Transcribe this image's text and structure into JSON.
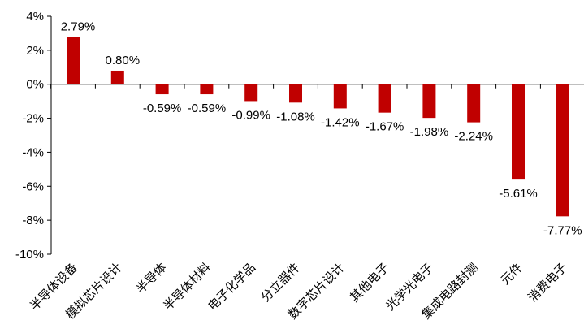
{
  "chart_data": {
    "type": "bar",
    "title": "",
    "xlabel": "",
    "ylabel": "",
    "categories": [
      "半导体设备",
      "模拟芯片设计",
      "半导体",
      "半导体材料",
      "电子化学品",
      "分立器件",
      "数字芯片设计",
      "其他电子",
      "光学光电子",
      "集成电路封测",
      "元件",
      "消费电子"
    ],
    "values": [
      2.79,
      0.8,
      -0.59,
      -0.59,
      -0.99,
      -1.08,
      -1.42,
      -1.67,
      -1.98,
      -2.24,
      -5.61,
      -7.77
    ],
    "data_labels": [
      "2.79%",
      "0.80%",
      "-0.59%",
      "-0.59%",
      "-0.99%",
      "-1.08%",
      "-1.42%",
      "-1.67%",
      "-1.98%",
      "-2.24%",
      "-5.61%",
      "-7.77%"
    ],
    "yticks": [
      4,
      2,
      0,
      -2,
      -4,
      -6,
      -8,
      -10
    ],
    "ytick_labels": [
      "4%",
      "2%",
      "0%",
      "-2%",
      "-4%",
      "-6%",
      "-8%",
      "-10%"
    ],
    "ylim": [
      -10,
      4
    ],
    "grid": false,
    "legend": "none",
    "colors": {
      "bar": "#c00000",
      "axis": "#000000"
    }
  }
}
